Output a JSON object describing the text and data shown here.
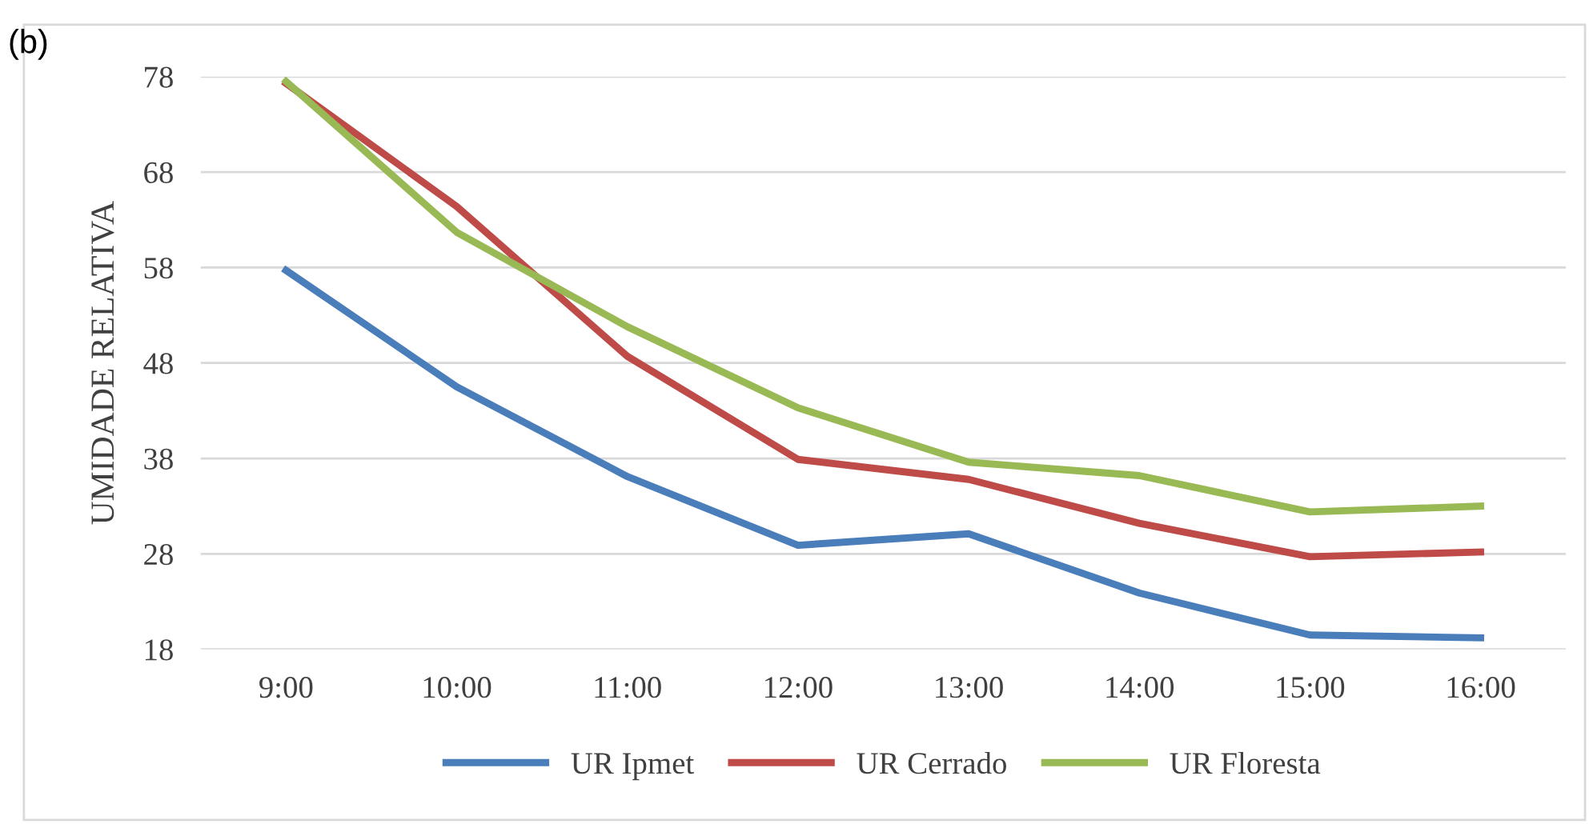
{
  "chart_data": {
    "type": "line",
    "ylabel": "UMIDADE RELATIVA",
    "annotations": [
      "(b)"
    ],
    "categories": [
      "9:00",
      "10:00",
      "11:00",
      "12:00",
      "13:00",
      "14:00",
      "15:00",
      "16:00"
    ],
    "series": [
      {
        "name": "UR Ipmet",
        "color": "#4a7ebb",
        "values": [
          57.7,
          45.5,
          36.1,
          28.9,
          30.1,
          23.9,
          19.5,
          19.2
        ]
      },
      {
        "name": "UR Cerrado",
        "color": "#be4b48",
        "values": [
          77.3,
          64.4,
          48.7,
          37.9,
          35.8,
          31.2,
          27.7,
          28.2
        ]
      },
      {
        "name": "UR Floresta",
        "color": "#98b954",
        "values": [
          77.5,
          61.7,
          51.8,
          43.3,
          37.6,
          36.2,
          32.4,
          33.0
        ]
      }
    ],
    "ylim": [
      18,
      78
    ],
    "yticks": [
      18,
      28,
      38,
      48,
      58,
      68,
      78
    ],
    "grid": "y",
    "legend": "bottom",
    "marker": "none",
    "line_style": "solid"
  }
}
